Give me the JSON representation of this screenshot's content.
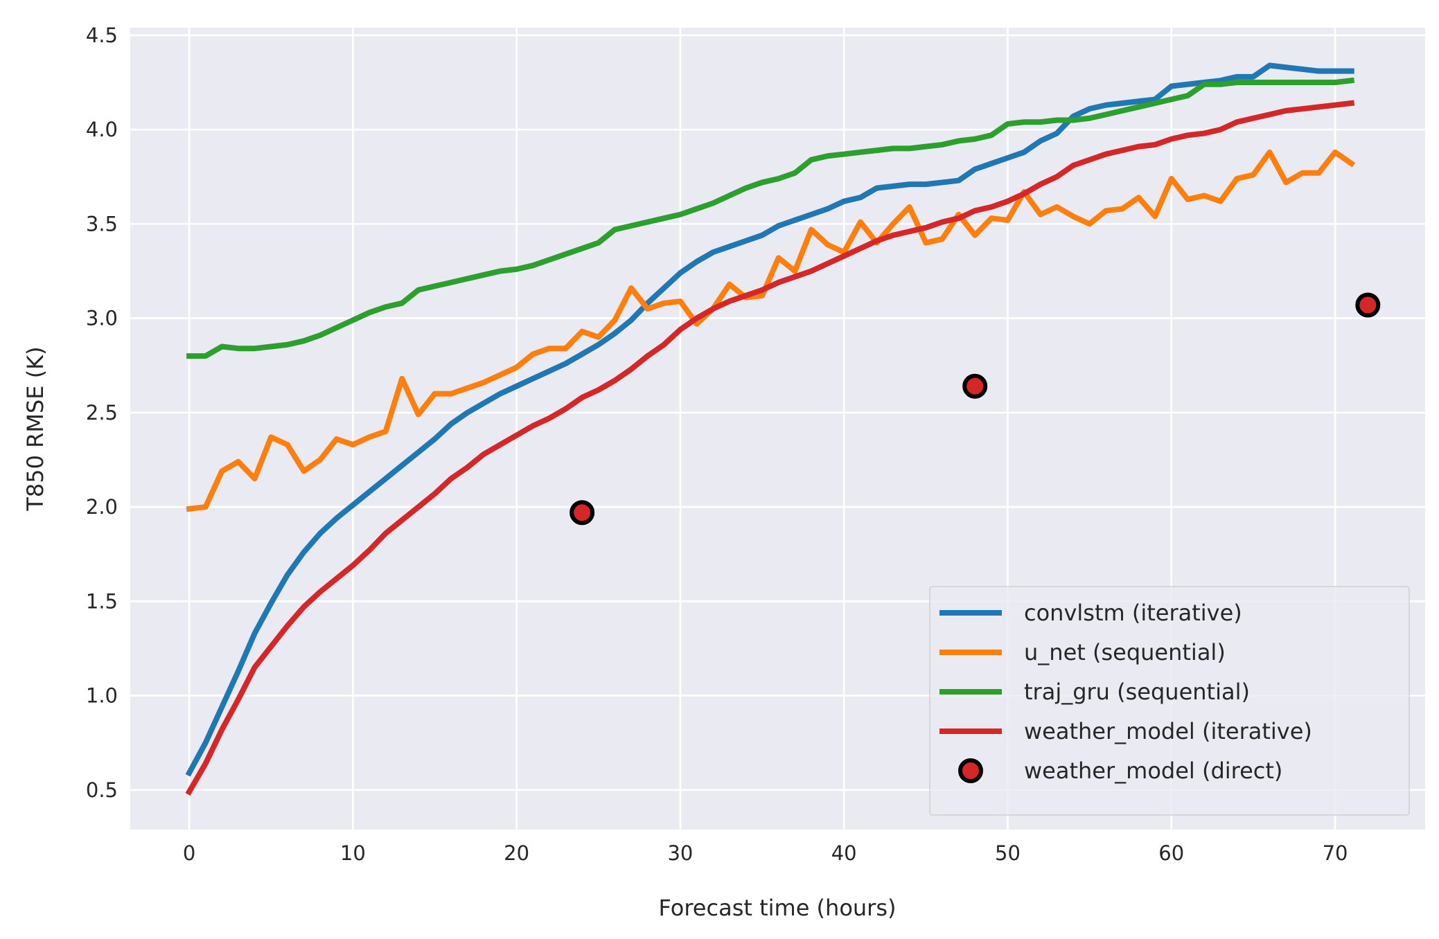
{
  "chart_data": {
    "type": "line",
    "title": "",
    "xlabel": "Forecast time (hours)",
    "ylabel": "T850 RMSE (K)",
    "xlim": [
      -3.6,
      75.5
    ],
    "ylim": [
      0.29,
      4.54
    ],
    "xticks": [
      0,
      10,
      20,
      30,
      40,
      50,
      60,
      70
    ],
    "yticks": [
      "0.5",
      "1.0",
      "1.5",
      "2.0",
      "2.5",
      "3.0",
      "3.5",
      "4.0",
      "4.5"
    ],
    "grid": true,
    "background": "#eaeaf2",
    "legend_position": "bottom-right",
    "series": [
      {
        "name": "convlstm (iterative)",
        "style": "line",
        "color": "#1f77b4",
        "x_start": 0,
        "values": [
          0.59,
          0.75,
          0.94,
          1.13,
          1.33,
          1.49,
          1.64,
          1.76,
          1.86,
          1.94,
          2.01,
          2.08,
          2.15,
          2.22,
          2.29,
          2.36,
          2.44,
          2.5,
          2.55,
          2.6,
          2.64,
          2.68,
          2.72,
          2.76,
          2.81,
          2.86,
          2.92,
          2.99,
          3.08,
          3.16,
          3.24,
          3.3,
          3.35,
          3.38,
          3.41,
          3.44,
          3.49,
          3.52,
          3.55,
          3.58,
          3.62,
          3.64,
          3.69,
          3.7,
          3.71,
          3.71,
          3.72,
          3.73,
          3.79,
          3.82,
          3.85,
          3.88,
          3.94,
          3.98,
          4.07,
          4.11,
          4.13,
          4.14,
          4.15,
          4.16,
          4.23,
          4.24,
          4.25,
          4.26,
          4.28,
          4.28,
          4.34,
          4.33,
          4.32,
          4.31,
          4.31,
          4.31
        ]
      },
      {
        "name": "u_net (sequential)",
        "style": "line",
        "color": "#ff7f0e",
        "x_start": 0,
        "values": [
          1.99,
          2.0,
          2.19,
          2.24,
          2.15,
          2.37,
          2.33,
          2.19,
          2.25,
          2.36,
          2.33,
          2.37,
          2.4,
          2.68,
          2.49,
          2.6,
          2.6,
          2.63,
          2.66,
          2.7,
          2.74,
          2.81,
          2.84,
          2.84,
          2.93,
          2.9,
          2.99,
          3.16,
          3.05,
          3.08,
          3.09,
          2.97,
          3.05,
          3.18,
          3.11,
          3.12,
          3.32,
          3.25,
          3.47,
          3.39,
          3.35,
          3.51,
          3.4,
          3.5,
          3.59,
          3.4,
          3.42,
          3.55,
          3.44,
          3.53,
          3.52,
          3.67,
          3.55,
          3.59,
          3.54,
          3.5,
          3.57,
          3.58,
          3.64,
          3.54,
          3.74,
          3.63,
          3.65,
          3.62,
          3.74,
          3.76,
          3.88,
          3.72,
          3.77,
          3.77,
          3.88,
          3.82
        ]
      },
      {
        "name": "traj_gru (sequential)",
        "style": "line",
        "color": "#2ca02c",
        "x_start": 0,
        "values": [
          2.8,
          2.8,
          2.85,
          2.84,
          2.84,
          2.85,
          2.86,
          2.88,
          2.91,
          2.95,
          2.99,
          3.03,
          3.06,
          3.08,
          3.15,
          3.17,
          3.19,
          3.21,
          3.23,
          3.25,
          3.26,
          3.28,
          3.31,
          3.34,
          3.37,
          3.4,
          3.47,
          3.49,
          3.51,
          3.53,
          3.55,
          3.58,
          3.61,
          3.65,
          3.69,
          3.72,
          3.74,
          3.77,
          3.84,
          3.86,
          3.87,
          3.88,
          3.89,
          3.9,
          3.9,
          3.91,
          3.92,
          3.94,
          3.95,
          3.97,
          4.03,
          4.04,
          4.04,
          4.05,
          4.05,
          4.06,
          4.08,
          4.1,
          4.12,
          4.14,
          4.16,
          4.18,
          4.24,
          4.24,
          4.25,
          4.25,
          4.25,
          4.25,
          4.25,
          4.25,
          4.25,
          4.26
        ]
      },
      {
        "name": "weather_model (iterative)",
        "style": "line",
        "color": "#d62728",
        "x_start": 0,
        "values": [
          0.49,
          0.64,
          0.82,
          0.98,
          1.15,
          1.26,
          1.37,
          1.47,
          1.55,
          1.62,
          1.69,
          1.77,
          1.86,
          1.93,
          2.0,
          2.07,
          2.15,
          2.21,
          2.28,
          2.33,
          2.38,
          2.43,
          2.47,
          2.52,
          2.58,
          2.62,
          2.67,
          2.73,
          2.8,
          2.86,
          2.94,
          3.0,
          3.05,
          3.09,
          3.12,
          3.15,
          3.19,
          3.22,
          3.25,
          3.29,
          3.33,
          3.37,
          3.41,
          3.44,
          3.46,
          3.48,
          3.51,
          3.53,
          3.57,
          3.59,
          3.62,
          3.66,
          3.71,
          3.75,
          3.81,
          3.84,
          3.87,
          3.89,
          3.91,
          3.92,
          3.95,
          3.97,
          3.98,
          4.0,
          4.04,
          4.06,
          4.08,
          4.1,
          4.11,
          4.12,
          4.13,
          4.14
        ]
      },
      {
        "name": "weather_model (direct)",
        "style": "scatter",
        "color": "#d62728",
        "edge_color": "#000000",
        "x": [
          24,
          48,
          72
        ],
        "values": [
          1.97,
          2.64,
          3.07
        ]
      }
    ]
  }
}
